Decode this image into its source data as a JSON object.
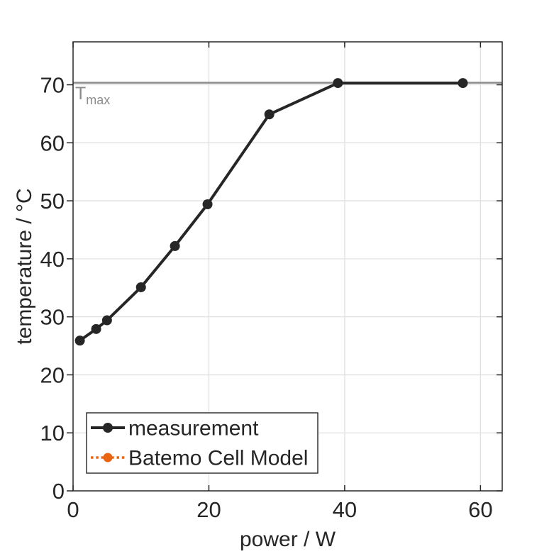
{
  "figure": {
    "background": "#ffffff"
  },
  "chart_data": {
    "type": "line",
    "title": "",
    "xlabel": "power / W",
    "ylabel": "temperature / °C",
    "xlim": [
      0,
      63.2
    ],
    "ylim": [
      0,
      77.4
    ],
    "xticks": [
      0,
      20,
      40,
      60
    ],
    "yticks": [
      0,
      10,
      20,
      30,
      40,
      50,
      60,
      70
    ],
    "grid": true,
    "legend_position": "inside-bottom-left",
    "series": [
      {
        "name": "measurement",
        "color": "#262626",
        "line_style": "solid",
        "marker": "circle",
        "points": [
          [
            1,
            25.9
          ],
          [
            3.4,
            27.9
          ],
          [
            5,
            29.4
          ],
          [
            10,
            35.1
          ],
          [
            15,
            42.2
          ],
          [
            19.8,
            49.4
          ],
          [
            28.9,
            64.9
          ],
          [
            39,
            70.3
          ],
          [
            57.4,
            70.3
          ]
        ]
      },
      {
        "name": "Batemo Cell Model",
        "color": "#ea6511",
        "line_style": "dotted",
        "marker": "circle",
        "points": []
      }
    ],
    "reference_line": {
      "value": 70.35,
      "color": "#8c8c8c",
      "label_main": "T",
      "label_sub": "max"
    }
  },
  "colors": {
    "axis": "#262626",
    "grid": "#e0e0e0",
    "text": "#262626",
    "reference": "#8c8c8c",
    "model_orange": "#ea6511"
  }
}
